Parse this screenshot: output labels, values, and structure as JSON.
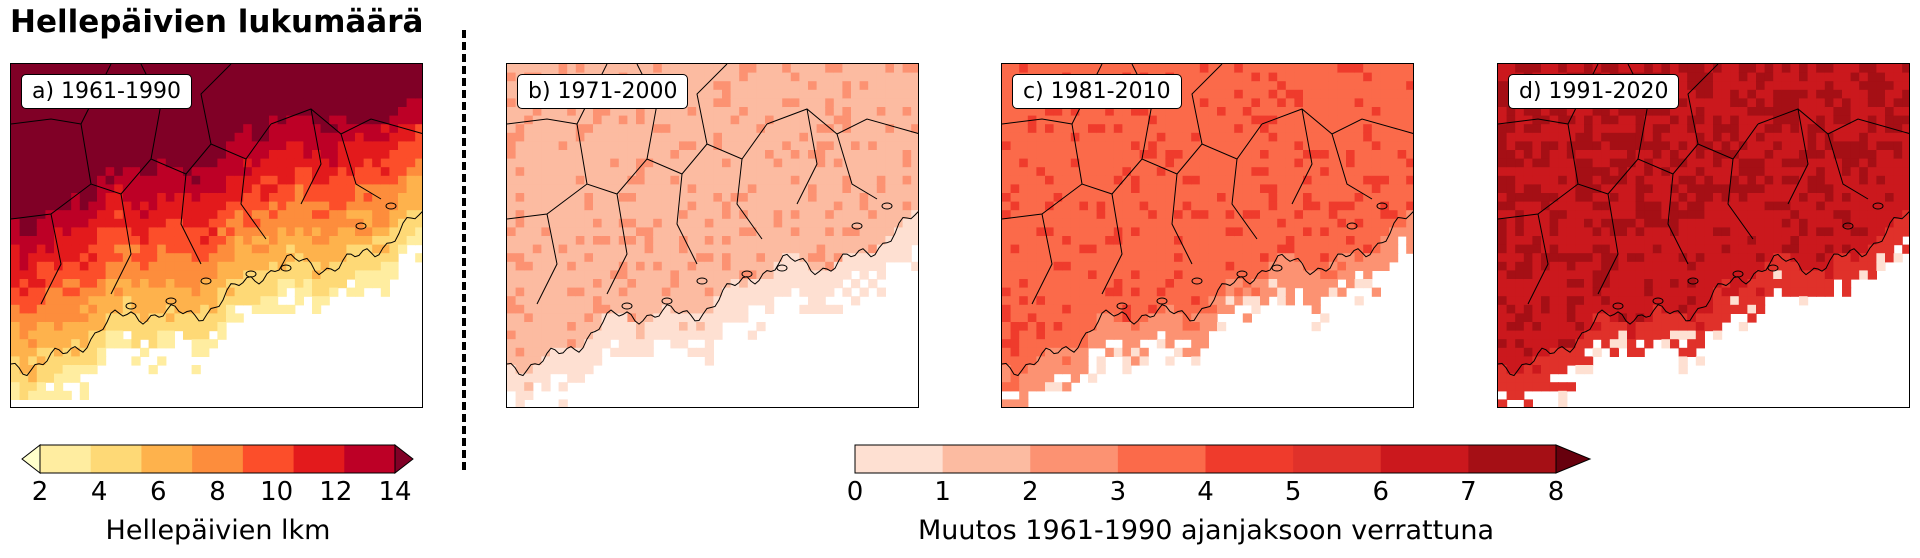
{
  "title": "Hellepäivien lukumäärä",
  "panels": [
    {
      "label": "a) 1961-1990",
      "mode": "absolute"
    },
    {
      "label": "b) 1971-2000",
      "mode": "change",
      "change_level": 1
    },
    {
      "label": "c) 1981-2010",
      "mode": "change",
      "change_level": 3
    },
    {
      "label": "d) 1991-2020",
      "mode": "change",
      "change_level": 6
    }
  ],
  "colorbar_absolute": {
    "label": "Hellepäivien lkm",
    "ticks": [
      "2",
      "4",
      "6",
      "8",
      "10",
      "12",
      "14"
    ],
    "colors": [
      "#ffffcc",
      "#ffeda0",
      "#fed976",
      "#feb24c",
      "#fd8d3c",
      "#fc4e2a",
      "#e31a1c",
      "#bd0026",
      "#800026"
    ],
    "extend": "both"
  },
  "colorbar_change": {
    "label": "Muutos 1961-1990 ajanjaksoon verrattuna",
    "ticks": [
      "0",
      "1",
      "2",
      "3",
      "4",
      "5",
      "6",
      "7",
      "8"
    ],
    "colors": [
      "#fee0d2",
      "#fcbba1",
      "#fc9272",
      "#fb6a4a",
      "#ef3b2c",
      "#e0312a",
      "#cb181d",
      "#a50f15",
      "#67000d"
    ],
    "extend": "max"
  }
}
